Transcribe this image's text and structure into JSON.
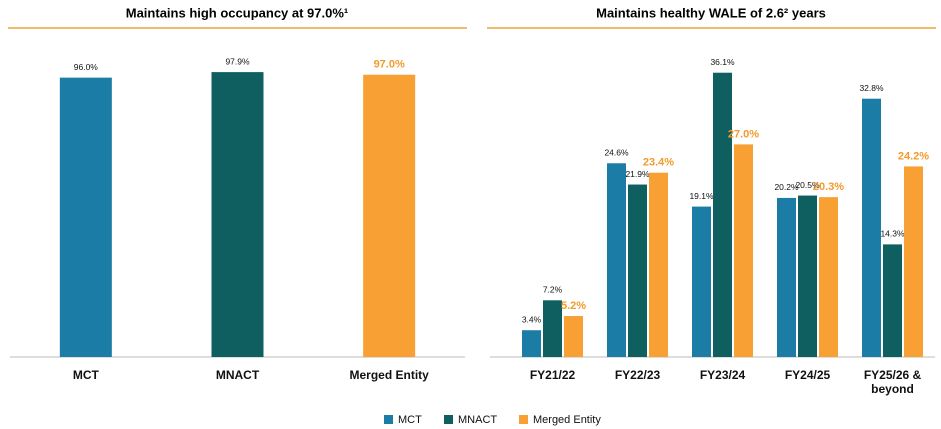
{
  "chart_data": [
    {
      "type": "bar",
      "title": "Maintains high occupancy at 97.0%¹",
      "categories": [
        "MCT",
        "MNACT",
        "Merged Entity"
      ],
      "values": [
        96.0,
        97.9,
        97.0
      ],
      "value_labels": [
        "96.0%",
        "97.9%",
        "97.0%"
      ],
      "colors": [
        "#1b7ca6",
        "#0f5e60",
        "#f8a033"
      ],
      "ylim": [
        0,
        100
      ]
    },
    {
      "type": "grouped_bar",
      "title": "Maintains healthy WALE of 2.6² years",
      "categories": [
        "FY21/22",
        "FY22/23",
        "FY23/24",
        "FY24/25",
        "FY25/26 & beyond"
      ],
      "series": [
        {
          "name": "MCT",
          "color": "#1b7ca6",
          "values": [
            3.4,
            24.6,
            19.1,
            20.2,
            32.8
          ],
          "value_labels": [
            "3.4%",
            "24.6%",
            "19.1%",
            "20.2%",
            "32.8%"
          ]
        },
        {
          "name": "MNACT",
          "color": "#0f5e60",
          "values": [
            7.2,
            21.9,
            36.1,
            20.5,
            14.3
          ],
          "value_labels": [
            "7.2%",
            "21.9%",
            "36.1%",
            "20.5%",
            "14.3%"
          ]
        },
        {
          "name": "Merged Entity",
          "color": "#f8a033",
          "values": [
            5.2,
            23.4,
            27.0,
            20.3,
            24.2
          ],
          "value_labels": [
            "5.2%",
            "23.4%",
            "27.0%",
            "20.3%",
            "24.2%"
          ]
        }
      ],
      "ylim": [
        0,
        40
      ],
      "legend": "bottom"
    }
  ]
}
